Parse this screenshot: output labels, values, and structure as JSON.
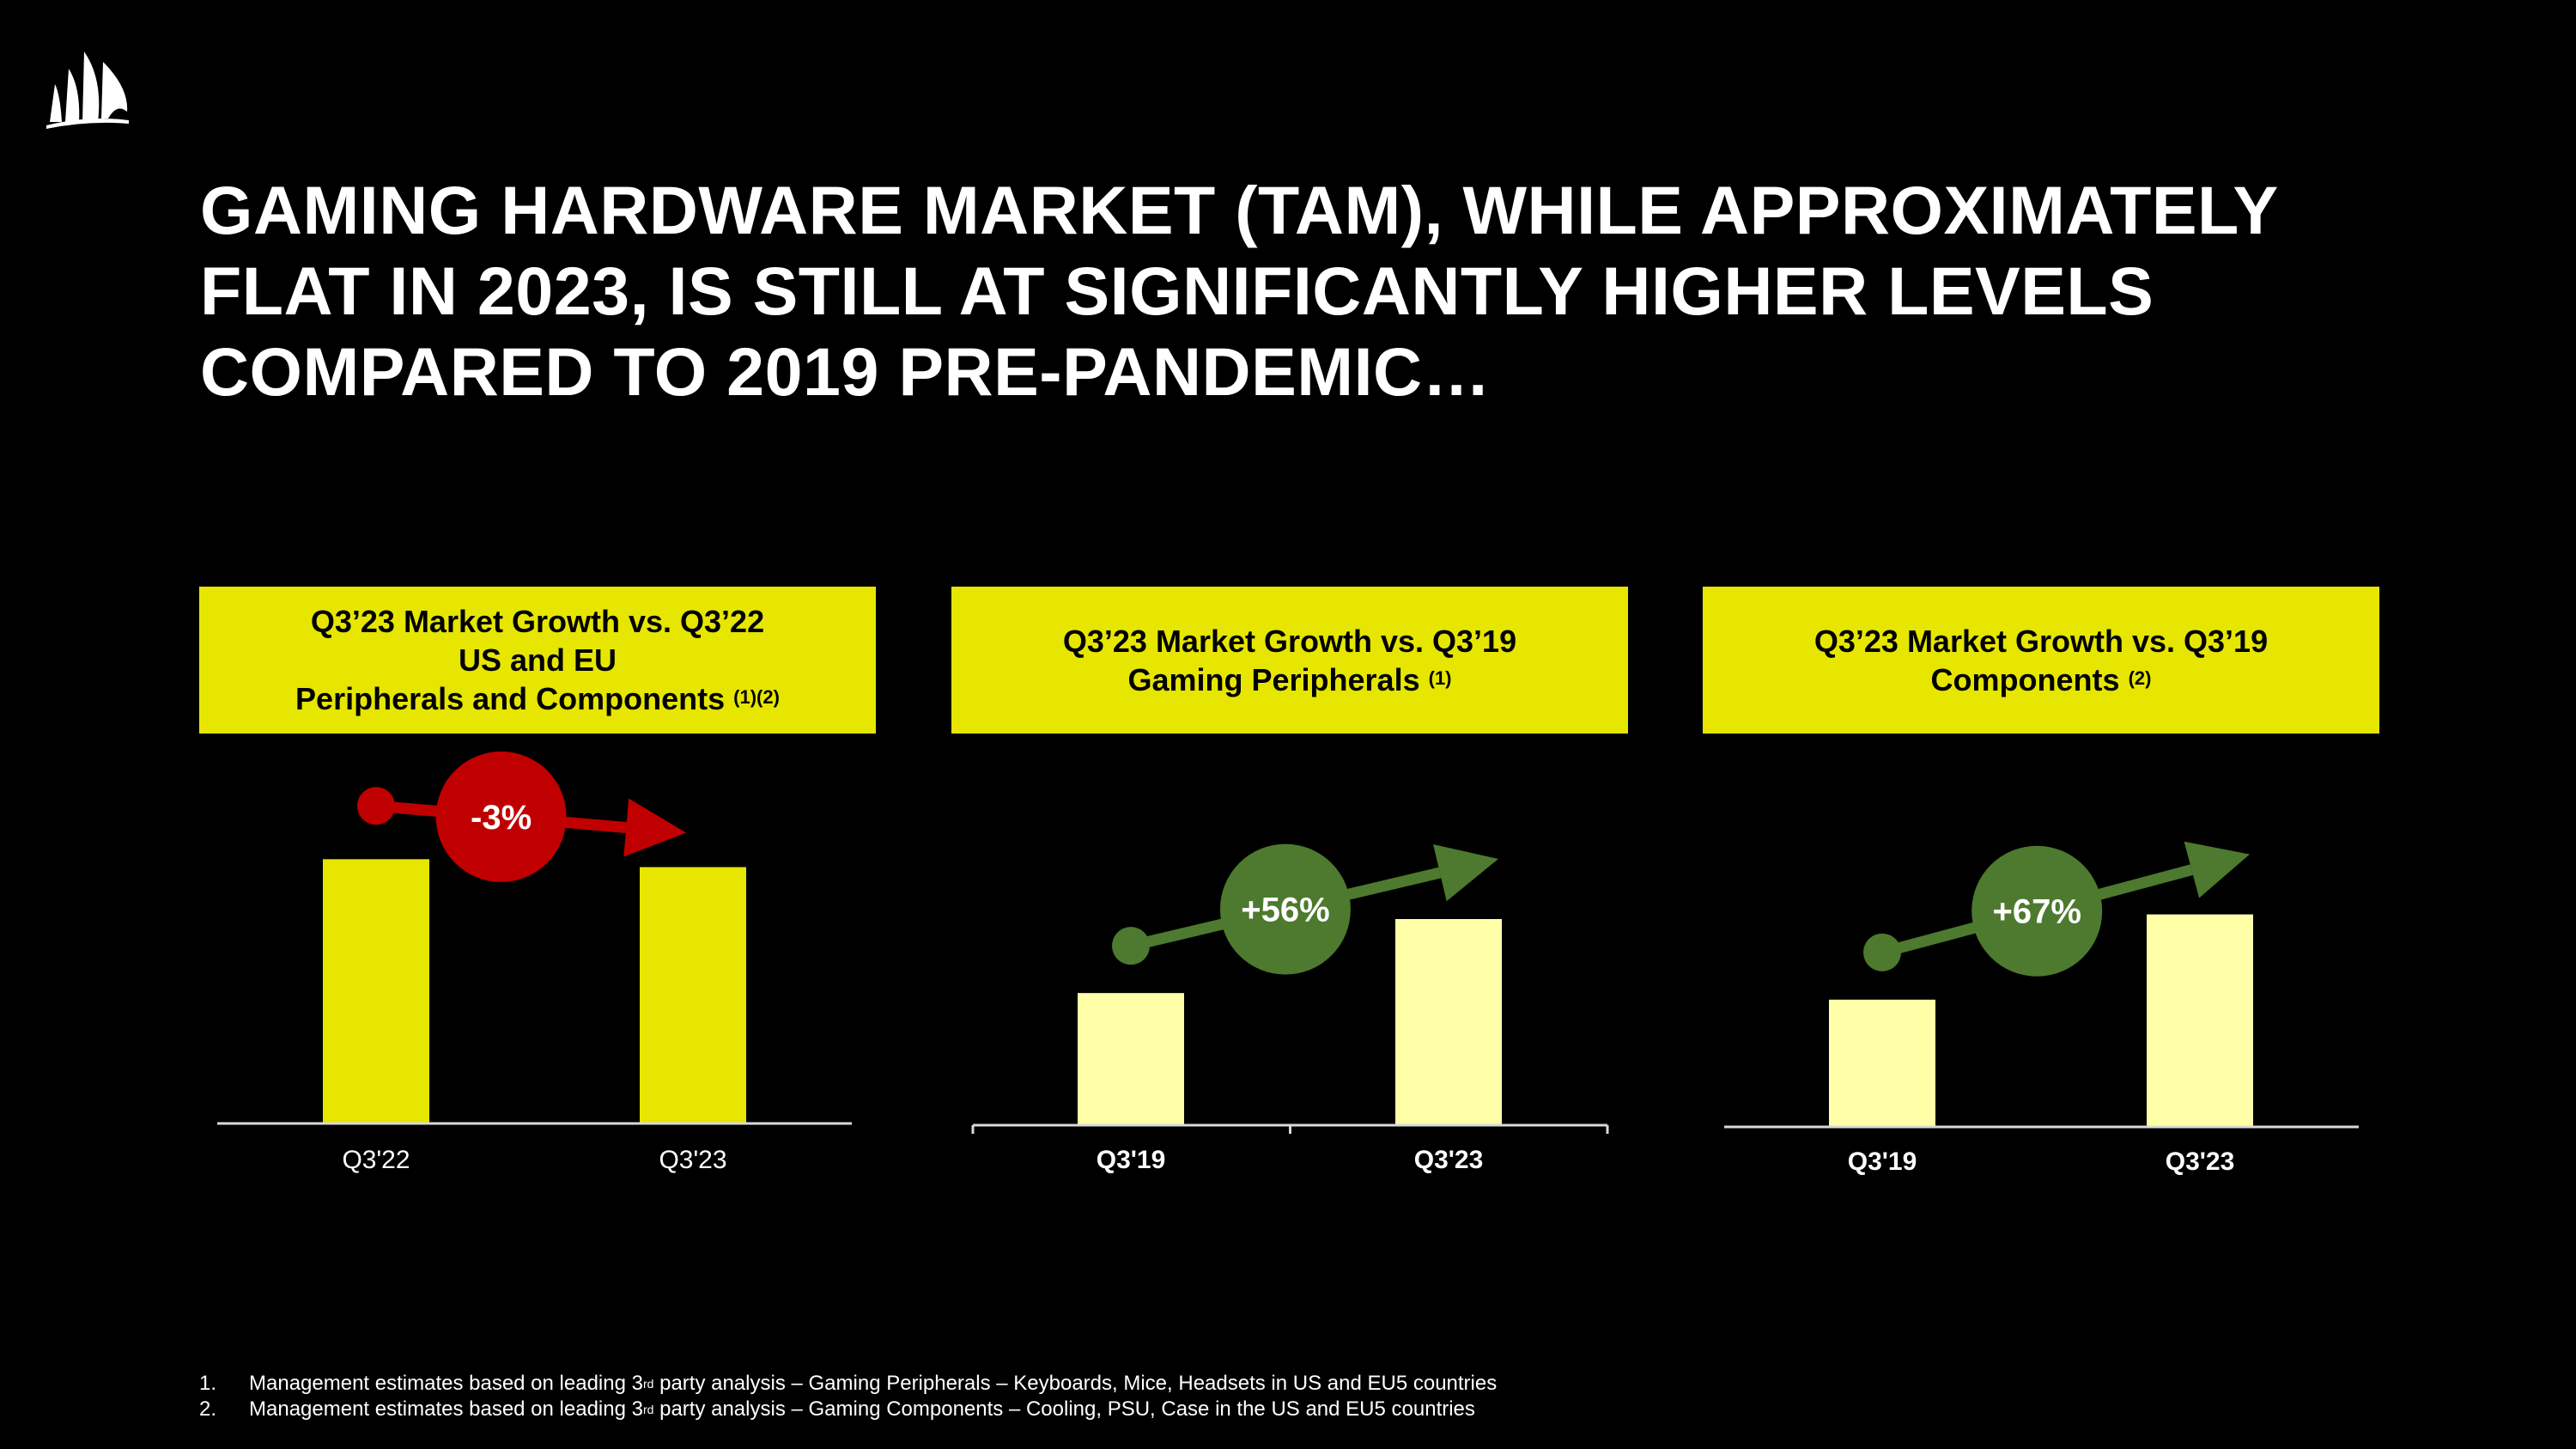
{
  "title": {
    "lines": [
      "GAMING HARDWARE MARKET (TAM), WHILE APPROXIMATELY",
      "FLAT IN 2023, IS STILL AT SIGNIFICANTLY HIGHER LEVELS",
      "COMPARED TO 2019 PRE-PANDEMIC…"
    ]
  },
  "logo": {
    "icon": "sails-logo-icon"
  },
  "colors": {
    "background": "#000000",
    "header_yellow": "#e6e600",
    "bar_yellow": "#e6e600",
    "bar_light": "#ffffa8",
    "decline_red": "#c00000",
    "growth_green": "#4d7a2e",
    "axis": "#d9d9d9"
  },
  "panels": [
    {
      "header_lines": [
        "Q3’23 Market Growth vs. Q3’22",
        "US and EU",
        "Peripherals and Components"
      ],
      "header_sup": "(1)(2)"
    },
    {
      "header_lines": [
        "Q3’23 Market Growth vs. Q3’19",
        "Gaming Peripherals"
      ],
      "header_sup": "(1)"
    },
    {
      "header_lines": [
        "Q3’23 Market Growth vs. Q3’19",
        "Components"
      ],
      "header_sup": "(2)"
    }
  ],
  "chart_data": [
    {
      "type": "bar",
      "title": "Q3’23 Market Growth vs. Q3’22 US and EU Peripherals and Components",
      "categories": [
        "Q3'22",
        "Q3'23"
      ],
      "values": [
        100,
        97
      ],
      "ylim": [
        0,
        130
      ],
      "change_label": "-3%",
      "direction": "down",
      "label_bold": false,
      "bar_color": "#e6e600",
      "badge_color": "#c00000",
      "xlabel": "",
      "ylabel": ""
    },
    {
      "type": "bar",
      "title": "Q3’23 Market Growth vs. Q3’19 Gaming Peripherals",
      "categories": [
        "Q3'19",
        "Q3'23"
      ],
      "values": [
        100,
        156
      ],
      "ylim": [
        0,
        260
      ],
      "change_label": "+56%",
      "direction": "up",
      "label_bold": true,
      "bar_color": "#ffffa8",
      "badge_color": "#4d7a2e",
      "xlabel": "",
      "ylabel": ""
    },
    {
      "type": "bar",
      "title": "Q3’23 Market Growth vs. Q3’19 Components",
      "categories": [
        "Q3'19",
        "Q3'23"
      ],
      "values": [
        100,
        167
      ],
      "ylim": [
        0,
        270
      ],
      "change_label": "+67%",
      "direction": "up",
      "label_bold": true,
      "bar_color": "#ffffa8",
      "badge_color": "#4d7a2e",
      "xlabel": "",
      "ylabel": ""
    }
  ],
  "footnotes": [
    {
      "num": "1.",
      "pre": "Management estimates based on leading 3",
      "sup": "rd",
      "post": " party analysis – Gaming Peripherals – Keyboards, Mice, Headsets in US and EU5 countries"
    },
    {
      "num": "2.",
      "pre": "Management estimates based on leading 3",
      "sup": "rd",
      "post": " party analysis – Gaming Components – Cooling, PSU, Case in the US and EU5 countries"
    }
  ]
}
